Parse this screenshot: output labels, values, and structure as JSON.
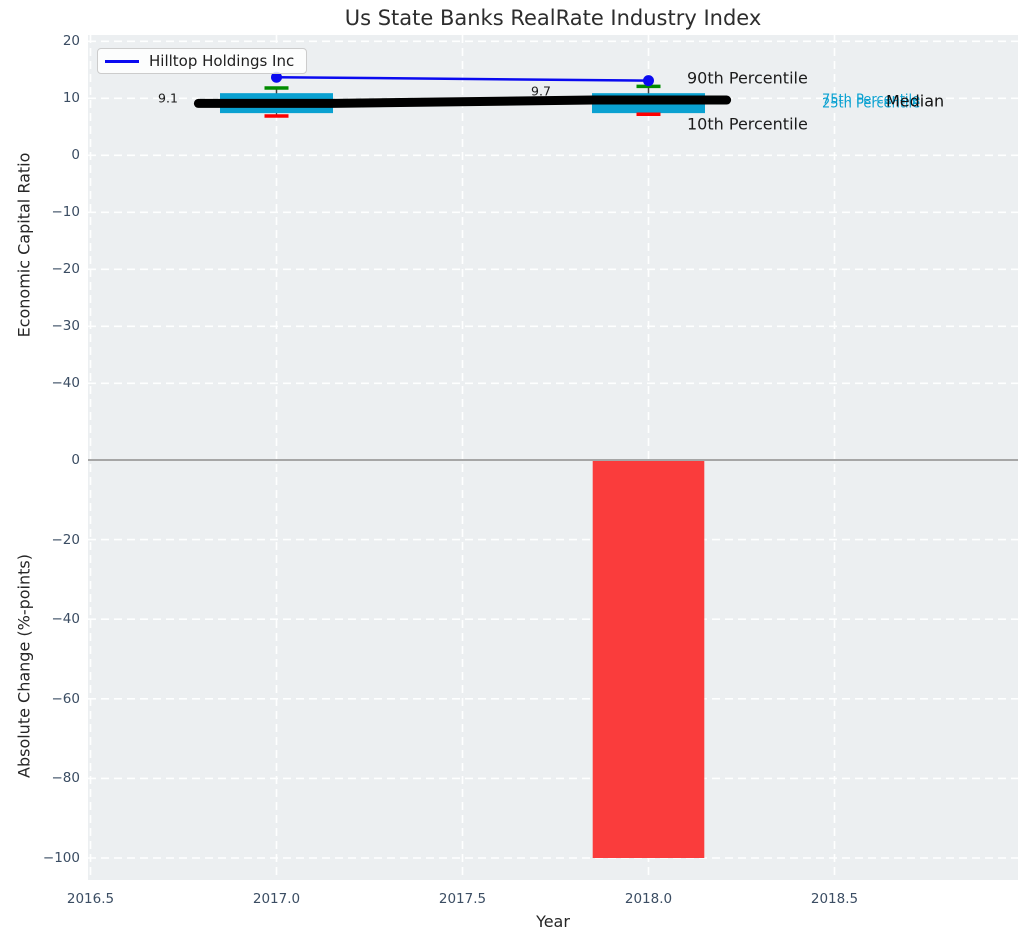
{
  "title": "Us State Banks RealRate Industry Index",
  "legend": {
    "label": "Hilltop Holdings Inc"
  },
  "axes": {
    "top": {
      "ylabel": "Economic Capital Ratio"
    },
    "bottom": {
      "ylabel": "Absolute Change (%-points)",
      "xlabel": "Year"
    }
  },
  "annotations": {
    "median_2017": "9.1",
    "median_2018": "9.7",
    "p90_label": "90th Percentile",
    "p10_label": "10th Percentile",
    "p75_label": "75th Percentile",
    "p25_label": "25th Percentile",
    "median_label": "Median"
  },
  "colors": {
    "axes_bg": "#eceff1",
    "grid": "#ffffff",
    "box_fill": "#0aa1d1",
    "whisker": "#3f3f3f",
    "p90_cap": "#008b00",
    "p10_cap": "#ff0000",
    "median_line": "#000000",
    "hilltop_line": "#0a0af0",
    "bar_fill": "#fa3c3c",
    "zero_line": "#a6a6a6",
    "tick_color": "#3b4d63"
  },
  "chart_data": [
    {
      "type": "box-line",
      "title": "Us State Banks RealRate Industry Index",
      "ylabel": "Economic Capital Ratio",
      "xlim": [
        2016.49,
        2019.0
      ],
      "ylim": [
        -52,
        21.2
      ],
      "yticks": [
        20,
        10,
        0,
        -10,
        -20,
        -30,
        -40
      ],
      "xticks": [
        2016.5,
        2017.0,
        2017.5,
        2018.0,
        2018.5
      ],
      "grid": "white dashed on light gray",
      "boxes": [
        {
          "year": 2017,
          "p10": 6.9,
          "p25": 7.4,
          "median": 9.1,
          "p75": 10.9,
          "p90": 11.8
        },
        {
          "year": 2018,
          "p10": 7.2,
          "p25": 7.4,
          "median": 9.7,
          "p75": 10.9,
          "p90": 12.1
        }
      ],
      "median_line": {
        "x": [
          2016.79,
          2017.15,
          2017.85,
          2018.21
        ],
        "y": [
          9.1,
          9.1,
          9.7,
          9.7
        ]
      },
      "series": [
        {
          "name": "Hilltop Holdings Inc",
          "x": [
            2017,
            2018
          ],
          "y": [
            13.7,
            13.1
          ]
        }
      ],
      "legend_position": "upper left"
    },
    {
      "type": "bar",
      "ylabel": "Absolute Change (%-points)",
      "xlabel": "Year",
      "categories": [
        2018
      ],
      "values": [
        -100
      ],
      "bar_width_years": 0.3,
      "ylim": [
        -105.5,
        2.5
      ],
      "yticks": [
        0,
        -20,
        -40,
        -60,
        -80,
        -100
      ],
      "xticks": [
        2016.5,
        2017.0,
        2017.5,
        2018.0,
        2018.5
      ],
      "zero_line": true
    }
  ]
}
